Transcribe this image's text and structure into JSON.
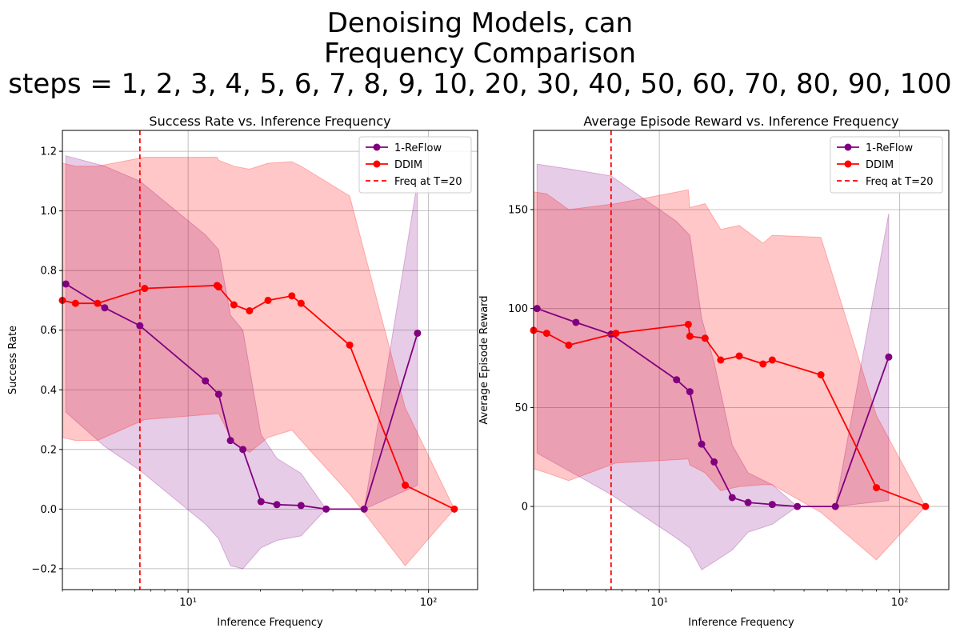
{
  "figure": {
    "title_lines": [
      "Denoising Models, can",
      "Frequency Comparison",
      "steps = 1, 2, 3, 4, 5, 6, 7, 8, 9, 10, 20, 30, 40, 50, 60, 70, 80, 90, 100"
    ]
  },
  "chart_data": [
    {
      "type": "line",
      "title": "Success Rate vs. Inference Frequency",
      "xlabel": "Inference Frequency",
      "ylabel": "Success Rate",
      "xscale": "log",
      "xlim": [
        3.0,
        160
      ],
      "ylim": [
        -0.27,
        1.27
      ],
      "xticks": [
        10,
        100
      ],
      "xtick_labels": [
        "10¹",
        "10²"
      ],
      "yticks": [
        -0.2,
        0.0,
        0.2,
        0.4,
        0.6,
        0.8,
        1.0,
        1.2
      ],
      "ytick_labels": [
        "−0.2",
        "0.0",
        "0.2",
        "0.4",
        "0.6",
        "0.8",
        "1.0",
        "1.2"
      ],
      "grid": true,
      "legend_position": "top-right",
      "vline": {
        "x": 6.3,
        "label": "Freq at T=20",
        "color": "#ff0000"
      },
      "series": [
        {
          "name": "1-ReFlow",
          "color": "#800080",
          "x": [
            3.1,
            4.5,
            6.3,
            11.8,
            13.4,
            15.0,
            16.9,
            20.1,
            23.4,
            29.5,
            37.5,
            54.0,
            90.0
          ],
          "y": [
            0.755,
            0.675,
            0.615,
            0.43,
            0.385,
            0.23,
            0.2,
            0.025,
            0.015,
            0.012,
            0.0,
            0.0,
            0.59
          ],
          "upper": [
            1.185,
            1.15,
            1.1,
            0.92,
            0.87,
            0.65,
            0.6,
            0.25,
            0.17,
            0.12,
            0.0,
            0.0,
            1.1
          ],
          "lower": [
            0.325,
            0.21,
            0.13,
            -0.05,
            -0.1,
            -0.19,
            -0.2,
            -0.13,
            -0.105,
            -0.09,
            0.0,
            0.0,
            0.08
          ]
        },
        {
          "name": "DDIM",
          "color": "#ff0000",
          "x": [
            3.0,
            3.4,
            4.2,
            6.6,
            13.2,
            13.4,
            15.5,
            18.0,
            21.5,
            27.0,
            29.5,
            47.0,
            80.0,
            128.0
          ],
          "y": [
            0.7,
            0.69,
            0.69,
            0.74,
            0.75,
            0.745,
            0.685,
            0.665,
            0.7,
            0.715,
            0.69,
            0.55,
            0.08,
            0.0
          ],
          "upper": [
            1.16,
            1.15,
            1.15,
            1.18,
            1.18,
            1.17,
            1.15,
            1.14,
            1.16,
            1.165,
            1.15,
            1.05,
            0.34,
            0.0
          ],
          "lower": [
            0.24,
            0.23,
            0.23,
            0.3,
            0.32,
            0.32,
            0.22,
            0.19,
            0.24,
            0.265,
            0.23,
            0.05,
            -0.19,
            0.0
          ]
        }
      ]
    },
    {
      "type": "line",
      "title": "Average Episode Reward vs. Inference Frequency",
      "xlabel": "Inference Frequency",
      "ylabel": "Average Episode Reward",
      "xscale": "log",
      "xlim": [
        3.0,
        160
      ],
      "ylim": [
        -42,
        190
      ],
      "xticks": [
        10,
        100
      ],
      "xtick_labels": [
        "10¹",
        "10²"
      ],
      "yticks": [
        0,
        50,
        100,
        150
      ],
      "ytick_labels": [
        "0",
        "50",
        "100",
        "150"
      ],
      "grid": true,
      "legend_position": "top-right",
      "vline": {
        "x": 6.3,
        "label": "Freq at T=20",
        "color": "#ff0000"
      },
      "series": [
        {
          "name": "1-ReFlow",
          "color": "#800080",
          "x": [
            3.1,
            4.5,
            6.3,
            11.8,
            13.4,
            15.0,
            16.9,
            20.1,
            23.4,
            29.5,
            37.5,
            54.0,
            90.0
          ],
          "y": [
            100,
            93,
            87,
            64,
            58,
            31.5,
            22.5,
            4.5,
            2,
            1,
            0,
            0,
            75.5
          ],
          "upper": [
            173,
            170,
            167,
            144,
            137,
            95,
            73,
            31,
            17,
            11,
            0,
            0,
            148
          ],
          "lower": [
            27,
            16,
            6,
            -16,
            -21,
            -32,
            -28,
            -22,
            -13,
            -9,
            0,
            0,
            3
          ]
        },
        {
          "name": "DDIM",
          "color": "#ff0000",
          "x": [
            3.0,
            3.4,
            4.2,
            6.6,
            13.2,
            13.4,
            15.5,
            18.0,
            21.5,
            27.0,
            29.5,
            47.0,
            80.0,
            128.0
          ],
          "y": [
            89,
            87.5,
            81.5,
            87.5,
            92,
            86,
            85,
            74,
            76,
            72,
            74,
            66.5,
            9.5,
            0
          ],
          "upper": [
            159,
            158,
            150,
            153,
            160,
            151,
            153,
            140,
            142,
            133,
            137,
            136,
            46,
            0
          ],
          "lower": [
            19,
            17,
            13,
            22,
            24,
            21,
            17,
            8,
            10,
            11,
            11,
            -3,
            -27,
            0
          ]
        }
      ]
    }
  ]
}
